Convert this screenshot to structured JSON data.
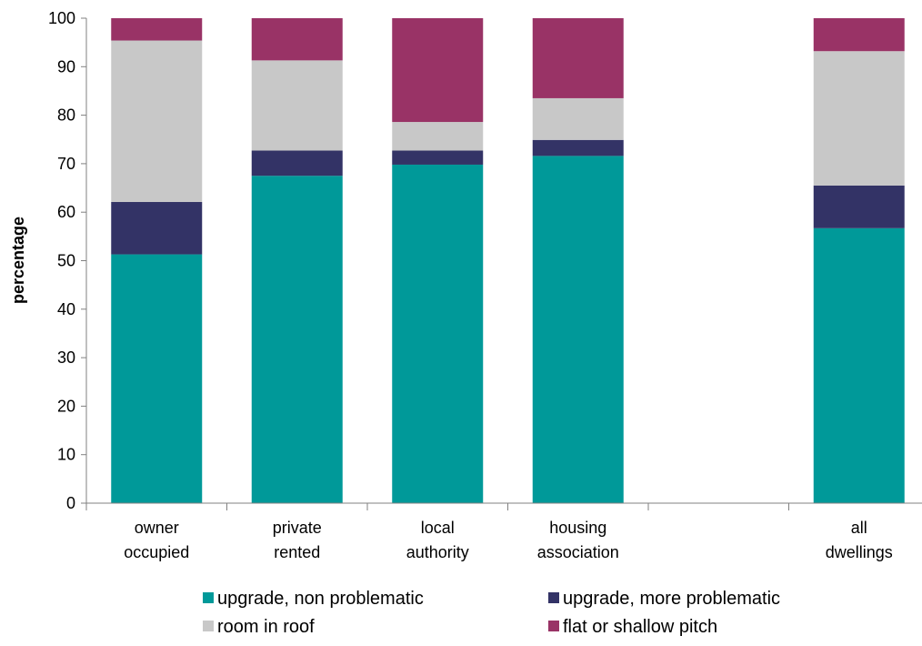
{
  "chart_data": {
    "type": "bar",
    "stacked": true,
    "ylabel": "percentage",
    "ylim": [
      0,
      100
    ],
    "yticks": [
      0,
      10,
      20,
      30,
      40,
      50,
      60,
      70,
      80,
      90,
      100
    ],
    "grid": false,
    "legend_position": "bottom",
    "categories": [
      [
        "owner",
        "occupied"
      ],
      [
        "private",
        "rented"
      ],
      [
        "local",
        "authority"
      ],
      [
        "housing",
        "association"
      ],
      [
        "",
        ""
      ],
      [
        "all",
        "dwellings"
      ]
    ],
    "series": [
      {
        "name": "upgrade, non problematic",
        "color": "#009999",
        "values": [
          51.3,
          67.5,
          69.8,
          71.6,
          null,
          56.7
        ]
      },
      {
        "name": "upgrade, more problematic",
        "color": "#333366",
        "values": [
          10.8,
          5.2,
          2.9,
          3.3,
          null,
          8.8
        ]
      },
      {
        "name": "room in roof",
        "color": "#C8C8C8",
        "values": [
          33.3,
          18.6,
          5.9,
          8.6,
          null,
          27.7
        ]
      },
      {
        "name": "flat or shallow pitch",
        "color": "#993366",
        "values": [
          4.6,
          8.7,
          21.4,
          16.5,
          null,
          6.8
        ]
      }
    ]
  }
}
